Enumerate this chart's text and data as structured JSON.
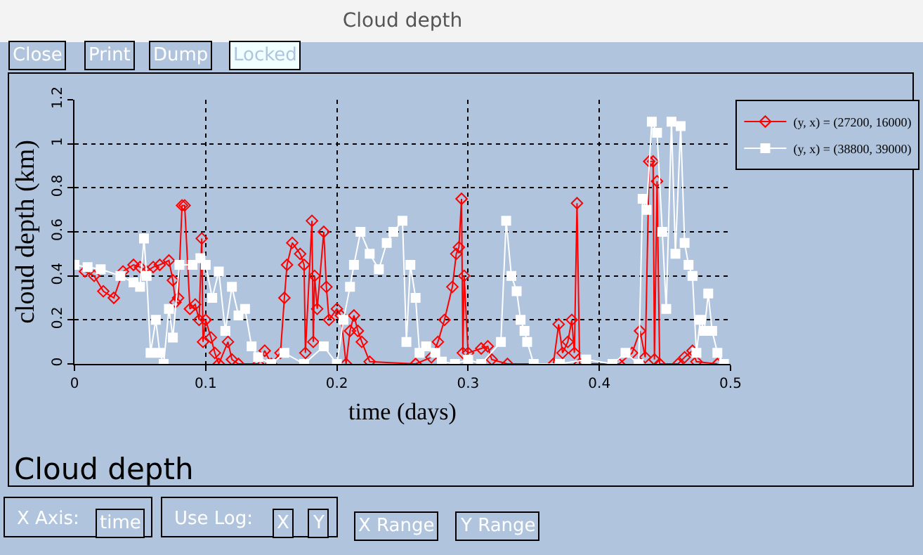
{
  "chart_data": {
    "type": "line",
    "title": "Cloud depth",
    "xlabel": "time (days)",
    "ylabel": "cloud depth (km)",
    "annotations": [
      "Close",
      "Print",
      "Dump",
      "Locked",
      "Cloud depth",
      "X Axis:",
      "time",
      "Use Log:",
      "X",
      "Y",
      "X Range",
      "Y Range"
    ],
    "xlim": [
      0,
      0.5
    ],
    "ylim": [
      0,
      1.2
    ],
    "xticks": [
      0,
      0.1,
      0.2,
      0.3,
      0.4,
      0.5
    ],
    "yticks": [
      0,
      0.2,
      0.4,
      0.6,
      0.8,
      1,
      1.2
    ],
    "grid": true,
    "legend": "top right",
    "line_style": "solid",
    "series": [
      {
        "name": "(y, x) = (27200, 16000)",
        "color": "#ff0000",
        "marker": "diamond",
        "x": [
          0.008,
          0.015,
          0.022,
          0.03,
          0.037,
          0.045,
          0.05,
          0.055,
          0.06,
          0.065,
          0.072,
          0.075,
          0.077,
          0.079,
          0.082,
          0.084,
          0.088,
          0.092,
          0.095,
          0.097,
          0.098,
          0.1,
          0.104,
          0.107,
          0.11,
          0.117,
          0.12,
          0.125,
          0.14,
          0.145,
          0.15,
          0.157,
          0.16,
          0.162,
          0.166,
          0.172,
          0.175,
          0.176,
          0.181,
          0.182,
          0.183,
          0.185,
          0.19,
          0.192,
          0.194,
          0.2,
          0.203,
          0.207,
          0.21,
          0.213,
          0.216,
          0.219,
          0.225,
          0.26,
          0.272,
          0.277,
          0.282,
          0.288,
          0.291,
          0.293,
          0.295,
          0.296,
          0.297,
          0.3,
          0.31,
          0.315,
          0.318,
          0.33,
          0.365,
          0.369,
          0.372,
          0.376,
          0.379,
          0.381,
          0.383,
          0.385,
          0.415,
          0.425,
          0.431,
          0.435,
          0.438,
          0.441,
          0.442,
          0.444,
          0.446,
          0.46,
          0.465,
          0.471,
          0.474,
          0.49
        ],
        "values": [
          0.42,
          0.4,
          0.33,
          0.3,
          0.42,
          0.45,
          0.44,
          0.42,
          0.44,
          0.45,
          0.47,
          0.38,
          0.28,
          0.3,
          0.72,
          0.72,
          0.25,
          0.27,
          0.2,
          0.57,
          0.1,
          0.2,
          0.12,
          0.05,
          0,
          0.1,
          0.02,
          0,
          0,
          0.06,
          0,
          0.05,
          0.3,
          0.45,
          0.55,
          0.5,
          0.45,
          0.05,
          0.65,
          0.1,
          0.4,
          0.25,
          0.6,
          0.35,
          0.2,
          0.25,
          0.22,
          0,
          0.15,
          0.22,
          0.15,
          0.1,
          0.01,
          0,
          0.03,
          0.1,
          0.2,
          0.35,
          0.5,
          0.53,
          0.75,
          0.05,
          0.4,
          0.05,
          0.07,
          0.08,
          0.02,
          0,
          0,
          0.18,
          0.05,
          0.1,
          0.2,
          0.05,
          0.73,
          0,
          0,
          0.05,
          0.15,
          0.03,
          0.92,
          0.92,
          0.02,
          0.83,
          0,
          0,
          0.03,
          0.06,
          0.01,
          0
        ]
      },
      {
        "name": "(y, x) = (38800, 39000)",
        "color": "#ffffff",
        "marker": "square",
        "x": [
          0,
          0.01,
          0.02,
          0.035,
          0.045,
          0.05,
          0.053,
          0.055,
          0.058,
          0.062,
          0.065,
          0.068,
          0.072,
          0.075,
          0.08,
          0.09,
          0.096,
          0.1,
          0.105,
          0.11,
          0.115,
          0.12,
          0.125,
          0.13,
          0.135,
          0.14,
          0.15,
          0.16,
          0.175,
          0.19,
          0.2,
          0.205,
          0.21,
          0.213,
          0.218,
          0.225,
          0.232,
          0.238,
          0.243,
          0.25,
          0.253,
          0.256,
          0.26,
          0.263,
          0.268,
          0.275,
          0.28,
          0.29,
          0.3,
          0.31,
          0.325,
          0.329,
          0.333,
          0.337,
          0.34,
          0.343,
          0.345,
          0.35,
          0.37,
          0.39,
          0.41,
          0.42,
          0.43,
          0.433,
          0.436,
          0.44,
          0.444,
          0.448,
          0.451,
          0.455,
          0.458,
          0.462,
          0.465,
          0.468,
          0.471,
          0.474,
          0.477,
          0.48,
          0.483,
          0.486,
          0.49,
          0.495
        ],
        "values": [
          0.45,
          0.44,
          0.43,
          0.4,
          0.37,
          0.35,
          0.57,
          0.4,
          0.05,
          0.2,
          0.05,
          0,
          0.25,
          0.12,
          0.45,
          0.45,
          0.48,
          0.45,
          0.3,
          0.42,
          0.15,
          0.35,
          0.22,
          0.25,
          0.08,
          0.03,
          0,
          0.05,
          0,
          0.08,
          0,
          0.2,
          0.35,
          0.45,
          0.6,
          0.5,
          0.43,
          0.55,
          0.6,
          0.65,
          0.1,
          0.45,
          0.3,
          0.05,
          0.08,
          0.05,
          0.01,
          0,
          0.02,
          0,
          0.1,
          0.65,
          0.4,
          0.33,
          0.2,
          0.15,
          0.1,
          0,
          0,
          0.02,
          0,
          0.05,
          0,
          0.75,
          0.7,
          1.1,
          1.05,
          0.6,
          0.25,
          1.1,
          0.5,
          1.08,
          0.55,
          0.45,
          0.4,
          0.05,
          0.2,
          0.15,
          0.32,
          0.15,
          0.05,
          0
        ]
      }
    ]
  }
}
